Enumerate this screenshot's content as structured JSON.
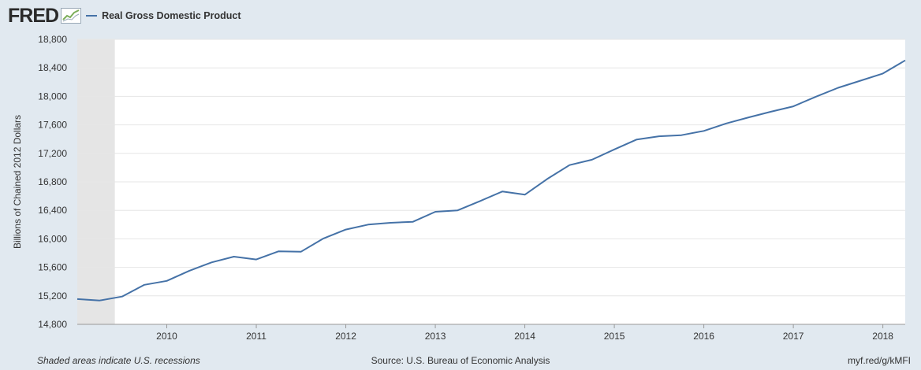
{
  "header": {
    "logo_text": "FRED",
    "legend_label": "Real Gross Domestic Product"
  },
  "footer": {
    "recession_note": "Shaded areas indicate U.S. recessions",
    "source": "Source: U.S. Bureau of Economic Analysis",
    "short_url": "myf.red/g/kMFI"
  },
  "colors": {
    "series": "#4572a7",
    "recession_shade": "#e5e5e5",
    "background": "#e1e9f0"
  },
  "chart_data": {
    "type": "line",
    "ylabel": "Billions of Chained 2012 Dollars",
    "ylim": [
      14800,
      18800
    ],
    "xlim": [
      2009.0,
      2018.25
    ],
    "yticks": [
      14800,
      15200,
      15600,
      16000,
      16400,
      16800,
      17200,
      17600,
      18000,
      18400,
      18800
    ],
    "ytick_labels": [
      "14,800",
      "15,200",
      "15,600",
      "16,000",
      "16,400",
      "16,800",
      "17,200",
      "17,600",
      "18,000",
      "18,400",
      "18,800"
    ],
    "xticks": [
      2010,
      2011,
      2012,
      2013,
      2014,
      2015,
      2016,
      2017,
      2018
    ],
    "xtick_labels": [
      "2010",
      "2011",
      "2012",
      "2013",
      "2014",
      "2015",
      "2016",
      "2017",
      "2018"
    ],
    "grid": true,
    "recessions": [
      [
        2009.0,
        2009.42
      ]
    ],
    "series": [
      {
        "name": "Real Gross Domestic Product",
        "x": [
          2009.0,
          2009.25,
          2009.5,
          2009.75,
          2010.0,
          2010.25,
          2010.5,
          2010.75,
          2011.0,
          2011.25,
          2011.5,
          2011.75,
          2012.0,
          2012.25,
          2012.5,
          2012.75,
          2013.0,
          2013.25,
          2013.5,
          2013.75,
          2014.0,
          2014.25,
          2014.5,
          2014.75,
          2015.0,
          2015.25,
          2015.5,
          2015.75,
          2016.0,
          2016.25,
          2016.5,
          2016.75,
          2017.0,
          2017.25,
          2017.5,
          2017.75,
          2018.0,
          2018.25
        ],
        "values": [
          15155,
          15135,
          15190,
          15355,
          15410,
          15550,
          15670,
          15750,
          15710,
          15825,
          15820,
          16005,
          16130,
          16200,
          16225,
          16240,
          16380,
          16400,
          16530,
          16665,
          16620,
          16840,
          17035,
          17110,
          17255,
          17395,
          17440,
          17455,
          17515,
          17620,
          17705,
          17785,
          17860,
          17995,
          18120,
          18220,
          18320,
          18505
        ]
      }
    ]
  }
}
